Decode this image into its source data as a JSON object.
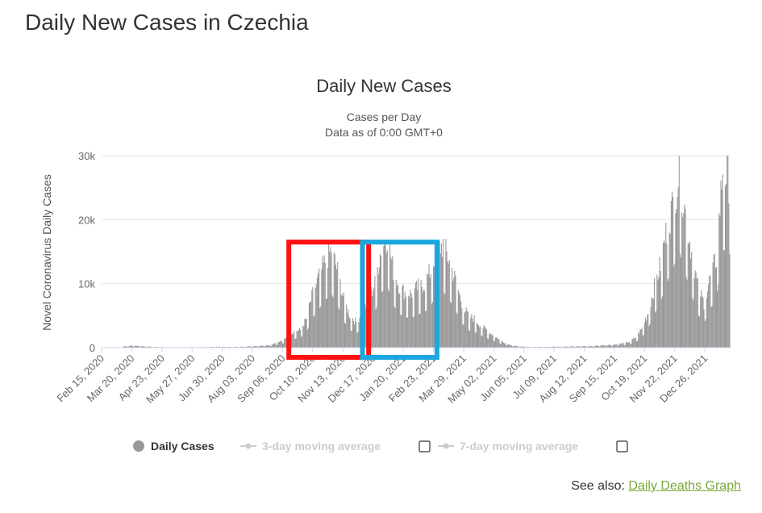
{
  "page": {
    "title": "Daily New Cases in Czechia",
    "see_also_label": "See also:",
    "see_also_link": "Daily Deaths Graph",
    "link_color": "#7aa837"
  },
  "chart_data": {
    "type": "bar",
    "title": "Daily New Cases",
    "subtitle_lines": [
      "Cases per Day",
      "Data as of 0:00 GMT+0"
    ],
    "xlabel": "",
    "ylabel": "Novel Coronavirus Daily Cases",
    "ylim": [
      0,
      30000
    ],
    "yticks": [
      0,
      10000,
      20000,
      30000
    ],
    "ytick_labels": [
      "0",
      "10k",
      "20k",
      "30k"
    ],
    "grid": true,
    "x_start": "2020-02-15",
    "x_end": "2022-01-23",
    "x_tick_labels": [
      "Feb 15, 2020",
      "Mar 20, 2020",
      "Apr 23, 2020",
      "May 27, 2020",
      "Jun 30, 2020",
      "Aug 03, 2020",
      "Sep 06, 2020",
      "Oct 10, 2020",
      "Nov 13, 2020",
      "Dec 17, 2020",
      "Jan 20, 2021",
      "Feb 23, 2021",
      "Mar 29, 2021",
      "May 02, 2021",
      "Jun 05, 2021",
      "Jul 09, 2021",
      "Aug 12, 2021",
      "Sep 15, 2021",
      "Oct 19, 2021",
      "Nov 22, 2021",
      "Dec 26, 2021"
    ],
    "series": [
      {
        "name": "Daily Cases",
        "color": "#999999",
        "weekly": [
          {
            "week_of": "2020-02-15",
            "value": 0
          },
          {
            "week_of": "2020-03-07",
            "value": 60
          },
          {
            "week_of": "2020-03-14",
            "value": 250
          },
          {
            "week_of": "2020-03-21",
            "value": 300
          },
          {
            "week_of": "2020-03-28",
            "value": 280
          },
          {
            "week_of": "2020-04-04",
            "value": 200
          },
          {
            "week_of": "2020-04-18",
            "value": 100
          },
          {
            "week_of": "2020-05-02",
            "value": 50
          },
          {
            "week_of": "2020-06-06",
            "value": 80
          },
          {
            "week_of": "2020-06-27",
            "value": 150
          },
          {
            "week_of": "2020-07-11",
            "value": 100
          },
          {
            "week_of": "2020-08-01",
            "value": 200
          },
          {
            "week_of": "2020-08-22",
            "value": 400
          },
          {
            "week_of": "2020-09-05",
            "value": 1000
          },
          {
            "week_of": "2020-09-12",
            "value": 2000
          },
          {
            "week_of": "2020-09-19",
            "value": 2500
          },
          {
            "week_of": "2020-09-26",
            "value": 2800
          },
          {
            "week_of": "2020-10-03",
            "value": 4500
          },
          {
            "week_of": "2020-10-10",
            "value": 8500
          },
          {
            "week_of": "2020-10-17",
            "value": 11000
          },
          {
            "week_of": "2020-10-24",
            "value": 13500
          },
          {
            "week_of": "2020-10-31",
            "value": 15300
          },
          {
            "week_of": "2020-11-07",
            "value": 12000
          },
          {
            "week_of": "2020-11-14",
            "value": 7500
          },
          {
            "week_of": "2020-11-21",
            "value": 5000
          },
          {
            "week_of": "2020-11-28",
            "value": 4000
          },
          {
            "week_of": "2020-12-05",
            "value": 5500
          },
          {
            "week_of": "2020-12-12",
            "value": 7500
          },
          {
            "week_of": "2020-12-19",
            "value": 10000
          },
          {
            "week_of": "2020-12-26",
            "value": 15500
          },
          {
            "week_of": "2021-01-02",
            "value": 17500
          },
          {
            "week_of": "2021-01-09",
            "value": 12000
          },
          {
            "week_of": "2021-01-16",
            "value": 9500
          },
          {
            "week_of": "2021-01-23",
            "value": 8500
          },
          {
            "week_of": "2021-01-30",
            "value": 8500
          },
          {
            "week_of": "2021-02-06",
            "value": 9500
          },
          {
            "week_of": "2021-02-13",
            "value": 10000
          },
          {
            "week_of": "2021-02-20",
            "value": 12000
          },
          {
            "week_of": "2021-02-27",
            "value": 15500
          },
          {
            "week_of": "2021-03-06",
            "value": 16000
          },
          {
            "week_of": "2021-03-13",
            "value": 13500
          },
          {
            "week_of": "2021-03-20",
            "value": 10500
          },
          {
            "week_of": "2021-03-27",
            "value": 7000
          },
          {
            "week_of": "2021-04-03",
            "value": 5000
          },
          {
            "week_of": "2021-04-10",
            "value": 4500
          },
          {
            "week_of": "2021-04-17",
            "value": 3500
          },
          {
            "week_of": "2021-04-24",
            "value": 2800
          },
          {
            "week_of": "2021-05-01",
            "value": 2000
          },
          {
            "week_of": "2021-05-08",
            "value": 1300
          },
          {
            "week_of": "2021-05-15",
            "value": 700
          },
          {
            "week_of": "2021-05-22",
            "value": 400
          },
          {
            "week_of": "2021-05-29",
            "value": 200
          },
          {
            "week_of": "2021-06-12",
            "value": 100
          },
          {
            "week_of": "2021-07-10",
            "value": 150
          },
          {
            "week_of": "2021-07-31",
            "value": 200
          },
          {
            "week_of": "2021-08-21",
            "value": 250
          },
          {
            "week_of": "2021-09-04",
            "value": 400
          },
          {
            "week_of": "2021-09-18",
            "value": 500
          },
          {
            "week_of": "2021-09-25",
            "value": 700
          },
          {
            "week_of": "2021-10-02",
            "value": 900
          },
          {
            "week_of": "2021-10-09",
            "value": 1600
          },
          {
            "week_of": "2021-10-16",
            "value": 3000
          },
          {
            "week_of": "2021-10-23",
            "value": 5500
          },
          {
            "week_of": "2021-10-30",
            "value": 9500
          },
          {
            "week_of": "2021-11-06",
            "value": 13000
          },
          {
            "week_of": "2021-11-13",
            "value": 18500
          },
          {
            "week_of": "2021-11-20",
            "value": 22500
          },
          {
            "week_of": "2021-11-27",
            "value": 27500
          },
          {
            "week_of": "2021-12-04",
            "value": 21000
          },
          {
            "week_of": "2021-12-11",
            "value": 15000
          },
          {
            "week_of": "2021-12-18",
            "value": 9500
          },
          {
            "week_of": "2021-12-25",
            "value": 7000
          },
          {
            "week_of": "2022-01-01",
            "value": 11000
          },
          {
            "week_of": "2022-01-08",
            "value": 14000
          },
          {
            "week_of": "2022-01-15",
            "value": 28000
          },
          {
            "week_of": "2022-01-22",
            "value": 26500
          }
        ]
      }
    ],
    "legend": {
      "placement": "bottom-center",
      "items": [
        {
          "label": "Daily Cases",
          "active": true,
          "has_checkbox": false
        },
        {
          "label": "3-day moving average",
          "active": false,
          "has_checkbox": true
        },
        {
          "label": "7-day moving average",
          "active": false,
          "has_checkbox": true
        }
      ]
    },
    "annotations": [
      {
        "shape": "rectangle",
        "color": "#ff1010",
        "from": "2020-09-13",
        "to": "2020-12-12",
        "y_top": 16500
      },
      {
        "shape": "rectangle",
        "color": "#1aa7e0",
        "from": "2020-12-05",
        "to": "2021-02-27",
        "y_top": 16500
      }
    ],
    "colors": {
      "bars": "#999999",
      "grid": "#e6e6e6",
      "axis": "#ccd6eb",
      "legend_inactive": "#cccccc"
    }
  }
}
